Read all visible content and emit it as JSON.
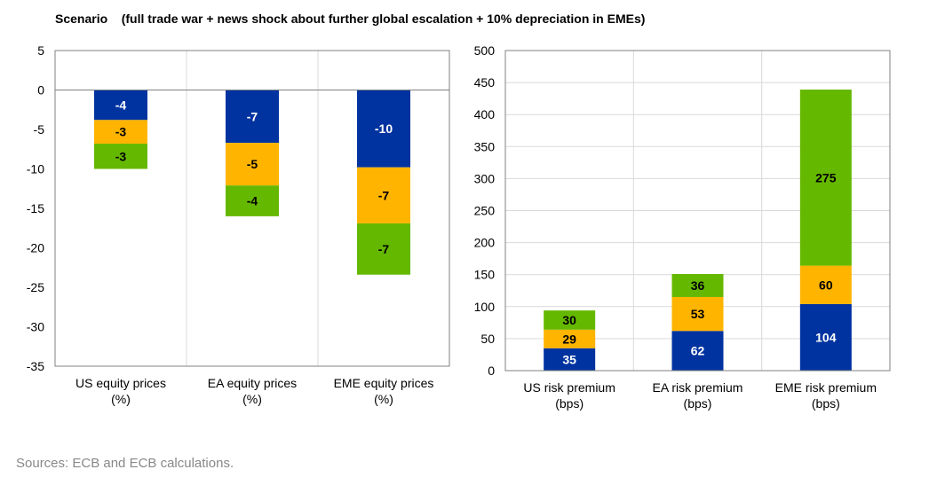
{
  "title": "Scenario    (full trade war + news shock about further global escalation + 10% depreciation in EMEs)",
  "source": "Sources: ECB and ECB calculations.",
  "colors": {
    "blue": "#0033a0",
    "yellow": "#ffb400",
    "green": "#65b800",
    "grid": "#d9d9d9",
    "axis": "#808080"
  },
  "chart_data": [
    {
      "type": "bar",
      "stacked": true,
      "categories": [
        [
          "US equity prices",
          "(%)"
        ],
        [
          "EA equity prices",
          "(%)"
        ],
        [
          "EME equity prices",
          "(%)"
        ]
      ],
      "series": [
        {
          "color": "blue",
          "values": [
            -4,
            -7,
            -10
          ]
        },
        {
          "color": "yellow",
          "values": [
            -3,
            -5,
            -7
          ]
        },
        {
          "color": "green",
          "values": [
            -3,
            -4,
            -7
          ]
        }
      ],
      "bar_extents": [
        [
          [
            0,
            -3.8
          ],
          [
            -3.8,
            -6.8
          ],
          [
            -6.8,
            -10
          ]
        ],
        [
          [
            0,
            -6.7
          ],
          [
            -6.7,
            -12.1
          ],
          [
            -12.1,
            -16
          ]
        ],
        [
          [
            0,
            -9.8
          ],
          [
            -9.8,
            -16.9
          ],
          [
            -16.9,
            -23.4
          ]
        ]
      ],
      "labels": [
        [
          "-4",
          "-3",
          "-3"
        ],
        [
          "-7",
          "-5",
          "-4"
        ],
        [
          "-10",
          "-7",
          "-7"
        ]
      ],
      "ylim": [
        -35,
        5
      ],
      "yticks": [
        5,
        0,
        -5,
        -10,
        -15,
        -20,
        -25,
        -30,
        -35
      ],
      "grid": true
    },
    {
      "type": "bar",
      "stacked": true,
      "categories": [
        [
          "US risk premium",
          "(bps)"
        ],
        [
          "EA risk premium",
          "(bps)"
        ],
        [
          "EME risk premium",
          "(bps)"
        ]
      ],
      "series": [
        {
          "color": "blue",
          "values": [
            35,
            62,
            104
          ]
        },
        {
          "color": "yellow",
          "values": [
            29,
            53,
            60
          ]
        },
        {
          "color": "green",
          "values": [
            30,
            36,
            275
          ]
        }
      ],
      "labels": [
        [
          "35",
          "29",
          "30"
        ],
        [
          "62",
          "53",
          "36"
        ],
        [
          "104",
          "60",
          "275"
        ]
      ],
      "ylim": [
        0,
        500
      ],
      "yticks": [
        500,
        450,
        400,
        350,
        300,
        250,
        200,
        150,
        100,
        50,
        0
      ],
      "grid": true
    }
  ]
}
